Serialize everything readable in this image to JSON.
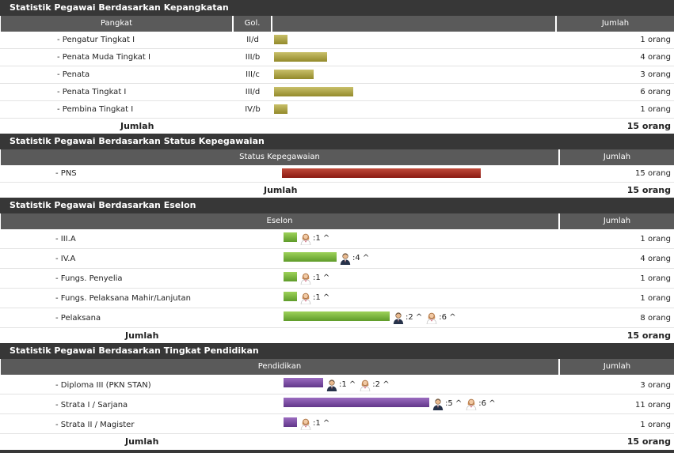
{
  "sections": {
    "pangkat": {
      "title": "Statistik Pegawai Berdasarkan Kepangkatan",
      "headers": {
        "name": "Pangkat",
        "gol": "Gol.",
        "jumlah": "Jumlah"
      },
      "rows": [
        {
          "label": "- Pengatur Tingkat I",
          "gol": "II/d",
          "count": "1 orang",
          "value": 1
        },
        {
          "label": "- Penata Muda Tingkat I",
          "gol": "III/b",
          "count": "4 orang",
          "value": 4
        },
        {
          "label": "- Penata",
          "gol": "III/c",
          "count": "3 orang",
          "value": 3
        },
        {
          "label": "- Penata Tingkat I",
          "gol": "III/d",
          "count": "6 orang",
          "value": 6
        },
        {
          "label": "- Pembina Tingkat I",
          "gol": "IV/b",
          "count": "1 orang",
          "value": 1
        }
      ],
      "total_label": "Jumlah",
      "total_value": "15 orang"
    },
    "status": {
      "title": "Statistik Pegawai Berdasarkan Status Kepegawaian",
      "headers": {
        "name": "Status Kepegawaian",
        "jumlah": "Jumlah"
      },
      "rows": [
        {
          "label": "- PNS",
          "count": "15 orang",
          "value": 15
        }
      ],
      "total_label": "Jumlah",
      "total_value": "15 orang"
    },
    "eselon": {
      "title": "Statistik Pegawai Berdasarkan Eselon",
      "headers": {
        "name": "Eselon",
        "jumlah": "Jumlah"
      },
      "rows": [
        {
          "label": "- III.A",
          "count": "1 orang",
          "value": 1,
          "genders": [
            {
              "icon": "female-user-icon",
              "text": ":1 ^"
            }
          ]
        },
        {
          "label": "- IV.A",
          "count": "4 orang",
          "value": 4,
          "genders": [
            {
              "icon": "male-user-icon",
              "text": ":4 ^"
            }
          ]
        },
        {
          "label": "- Fungs. Penyelia",
          "count": "1 orang",
          "value": 1,
          "genders": [
            {
              "icon": "female-user-icon",
              "text": ":1 ^"
            }
          ]
        },
        {
          "label": "- Fungs. Pelaksana Mahir/Lanjutan",
          "count": "1 orang",
          "value": 1,
          "genders": [
            {
              "icon": "female-user-icon",
              "text": ":1 ^"
            }
          ]
        },
        {
          "label": "- Pelaksana",
          "count": "8 orang",
          "value": 8,
          "genders": [
            {
              "icon": "male-user-icon",
              "text": ":2 ^"
            },
            {
              "icon": "female-user-icon",
              "text": ":6 ^"
            }
          ]
        }
      ],
      "total_label": "Jumlah",
      "total_value": "15 orang"
    },
    "pendidikan": {
      "title": "Statistik Pegawai Berdasarkan Tingkat Pendidikan",
      "headers": {
        "name": "Pendidikan",
        "jumlah": "Jumlah"
      },
      "rows": [
        {
          "label": "- Diploma III (PKN STAN)",
          "count": "3 orang",
          "value": 3,
          "genders": [
            {
              "icon": "male-user-icon",
              "text": ":1 ^"
            },
            {
              "icon": "female-user-icon",
              "text": ":2 ^"
            }
          ]
        },
        {
          "label": "- Strata I / Sarjana",
          "count": "11 orang",
          "value": 11,
          "genders": [
            {
              "icon": "male-user-icon",
              "text": ":5 ^"
            },
            {
              "icon": "female-user-icon",
              "text": ":6 ^"
            }
          ]
        },
        {
          "label": "- Strata II / Magister",
          "count": "1 orang",
          "value": 1,
          "genders": [
            {
              "icon": "female-user-icon",
              "text": ":1 ^"
            }
          ]
        }
      ],
      "total_label": "Jumlah",
      "total_value": "15 orang"
    }
  },
  "colors": {
    "title_bg": "#373737",
    "header_bg": "#5a5a5a",
    "bar_pangkat": "#b5ab48",
    "bar_status": "#a52a1e",
    "bar_eselon": "#7bbb3c",
    "bar_pendidikan": "#7a4ba3"
  }
}
